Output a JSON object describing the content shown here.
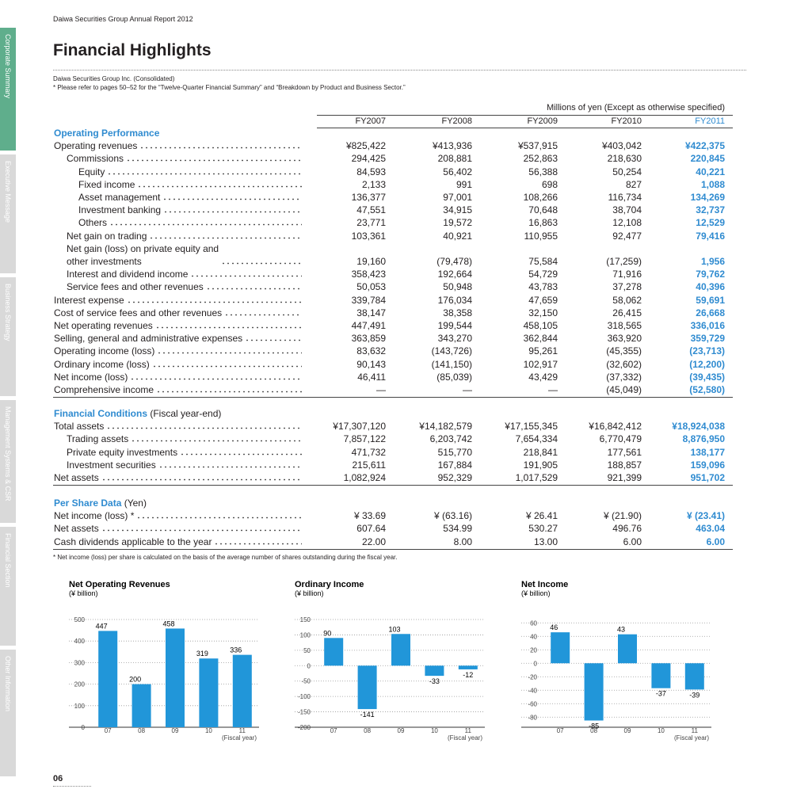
{
  "header": {
    "running_title": "Daiwa Securities Group  Annual Report 2012",
    "title": "Financial Highlights",
    "entity": "Daiwa Securities Group Inc. (Consolidated)",
    "note": "* Please refer to pages 50–52 for the “Twelve-Quarter Financial Summary” and “Breakdown by Product and Business Sector.”"
  },
  "side_tabs": [
    "Corporate Summary",
    "Executive Message",
    "Business Strategy",
    "Management Systems & CSR",
    "Financial Section",
    "Other Information"
  ],
  "table": {
    "units": "Millions of yen (Except as otherwise specified)",
    "columns": [
      "FY2007",
      "FY2008",
      "FY2009",
      "FY2010",
      "FY2011"
    ],
    "sections": [
      {
        "title": "Operating Performance",
        "rows": [
          {
            "label": "Operating revenues",
            "values": [
              "¥825,422",
              "¥413,936",
              "¥537,915",
              "¥403,042",
              "¥422,375"
            ]
          },
          {
            "label": "Commissions",
            "values": [
              "294,425",
              "208,881",
              "252,863",
              "218,630",
              "220,845"
            ]
          },
          {
            "label": "Equity",
            "values": [
              "84,593",
              "56,402",
              "56,388",
              "50,254",
              "40,221"
            ]
          },
          {
            "label": "Fixed income",
            "values": [
              "2,133",
              "991",
              "698",
              "827",
              "1,088"
            ]
          },
          {
            "label": "Asset management",
            "values": [
              "136,377",
              "97,001",
              "108,266",
              "116,734",
              "134,269"
            ]
          },
          {
            "label": "Investment banking",
            "values": [
              "47,551",
              "34,915",
              "70,648",
              "38,704",
              "32,737"
            ]
          },
          {
            "label": "Others",
            "values": [
              "23,771",
              "19,572",
              "16,863",
              "12,108",
              "12,529"
            ]
          },
          {
            "label": "Net gain on trading",
            "values": [
              "103,361",
              "40,921",
              "110,955",
              "92,477",
              "79,416"
            ]
          },
          {
            "label": "Net gain (loss) on private equity and\nother investments",
            "values": [
              "19,160",
              "(79,478)",
              "75,584",
              "(17,259)",
              "1,956"
            ]
          },
          {
            "label": "Interest and dividend income",
            "values": [
              "358,423",
              "192,664",
              "54,729",
              "71,916",
              "79,762"
            ]
          },
          {
            "label": "Service fees and other revenues",
            "values": [
              "50,053",
              "50,948",
              "43,783",
              "37,278",
              "40,396"
            ]
          },
          {
            "label": "Interest expense",
            "values": [
              "339,784",
              "176,034",
              "47,659",
              "58,062",
              "59,691"
            ]
          },
          {
            "label": "Cost of service fees and other revenues",
            "values": [
              "38,147",
              "38,358",
              "32,150",
              "26,415",
              "26,668"
            ]
          },
          {
            "label": "Net operating revenues",
            "values": [
              "447,491",
              "199,544",
              "458,105",
              "318,565",
              "336,016"
            ]
          },
          {
            "label": "Selling, general and administrative expenses",
            "values": [
              "363,859",
              "343,270",
              "362,844",
              "363,920",
              "359,729"
            ]
          },
          {
            "label": "Operating income (loss)",
            "values": [
              "83,632",
              "(143,726)",
              "95,261",
              "(45,355)",
              "(23,713)"
            ]
          },
          {
            "label": "Ordinary income (loss)",
            "values": [
              "90,143",
              "(141,150)",
              "102,917",
              "(32,602)",
              "(12,200)"
            ]
          },
          {
            "label": "Net income (loss)",
            "values": [
              "46,411",
              "(85,039)",
              "43,429",
              "(37,332)",
              "(39,435)"
            ]
          },
          {
            "label": "Comprehensive income",
            "values": [
              "—",
              "—",
              "—",
              "(45,049)",
              "(52,580)"
            ]
          }
        ]
      },
      {
        "title": "Financial Conditions",
        "title_note": "(Fiscal year-end)",
        "rows": [
          {
            "label": "Total assets",
            "values": [
              "¥17,307,120",
              "¥14,182,579",
              "¥17,155,345",
              "¥16,842,412",
              "¥18,924,038"
            ]
          },
          {
            "label": "Trading assets",
            "values": [
              "7,857,122",
              "6,203,742",
              "7,654,334",
              "6,770,479",
              "8,876,950"
            ]
          },
          {
            "label": "Private equity investments",
            "values": [
              "471,732",
              "515,770",
              "218,841",
              "177,561",
              "138,177"
            ]
          },
          {
            "label": "Investment securities",
            "values": [
              "215,611",
              "167,884",
              "191,905",
              "188,857",
              "159,096"
            ]
          },
          {
            "label": "Net assets",
            "values": [
              "1,082,924",
              "952,329",
              "1,017,529",
              "921,399",
              "951,702"
            ]
          }
        ]
      },
      {
        "title": "Per Share Data",
        "title_note": "(Yen)",
        "rows": [
          {
            "label": "Net income (loss) *",
            "values": [
              "¥ 33.69",
              "¥ (63.16)",
              "¥ 26.41",
              "¥ (21.90)",
              "¥ (23.41)"
            ]
          },
          {
            "label": "Net assets",
            "values": [
              "607.64",
              "534.99",
              "530.27",
              "496.76",
              "463.04"
            ]
          },
          {
            "label": "Cash dividends applicable to the year",
            "values": [
              "22.00",
              "8.00",
              "13.00",
              "6.00",
              "6.00"
            ]
          }
        ]
      }
    ]
  },
  "footnote": "* Net income (loss) per share is calculated on the basis of the average number of shares outstanding during the fiscal year.",
  "chart_data": [
    {
      "type": "bar",
      "title": "Net Operating Revenues",
      "y_label": "(¥ billion)",
      "x_label": "(Fiscal year)",
      "categories": [
        "07",
        "08",
        "09",
        "10",
        "11"
      ],
      "values": [
        447,
        200,
        458,
        319,
        336
      ],
      "color": "#2196d9",
      "ylim": [
        0,
        500
      ],
      "yticks": [
        0,
        100,
        200,
        300,
        400,
        500
      ],
      "grid": true
    },
    {
      "type": "bar",
      "title": "Ordinary Income",
      "y_label": "(¥ billion)",
      "x_label": "(Fiscal year)",
      "categories": [
        "07",
        "08",
        "09",
        "10",
        "11"
      ],
      "values": [
        90,
        -141,
        103,
        -33,
        -12
      ],
      "color": "#2196d9",
      "ylim": [
        -200,
        150
      ],
      "yticks": [
        -200,
        -150,
        -100,
        -50,
        0,
        50,
        100,
        150
      ],
      "grid": true
    },
    {
      "type": "bar",
      "title": "Net Income",
      "y_label": "(¥ billion)",
      "x_label": "(Fiscal year)",
      "categories": [
        "07",
        "08",
        "09",
        "10",
        "11"
      ],
      "values": [
        46,
        -85,
        43,
        -37,
        -39
      ],
      "color": "#2196d9",
      "ylim": [
        -95,
        65
      ],
      "yticks": [
        -80,
        -60,
        -40,
        -20,
        0,
        20,
        40,
        60
      ],
      "grid": true
    }
  ],
  "page_number": "06"
}
